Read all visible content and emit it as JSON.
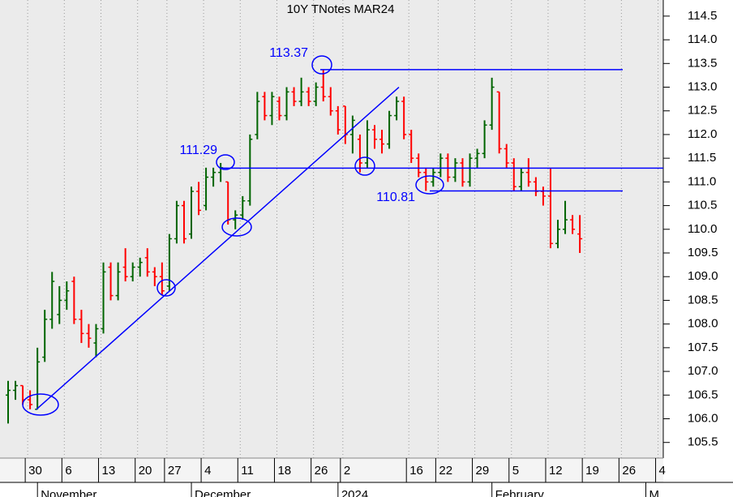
{
  "chart_data": {
    "type": "ohlc",
    "title": "10Y TNotes MAR24",
    "categories": [
      null,
      null,
      null,
      "30",
      null,
      null,
      null,
      null,
      "6",
      null,
      null,
      null,
      null,
      "13",
      null,
      null,
      null,
      null,
      "20",
      null,
      null,
      null,
      "27",
      null,
      null,
      null,
      null,
      "4",
      null,
      null,
      null,
      null,
      "11",
      null,
      null,
      null,
      null,
      "18",
      null,
      null,
      null,
      null,
      "26",
      null,
      null,
      null,
      "2",
      null,
      null,
      null,
      null,
      null,
      null,
      null,
      null,
      "16",
      null,
      null,
      null,
      "22",
      null,
      null,
      null,
      null,
      "29",
      null,
      null,
      null,
      null,
      "5",
      null,
      null,
      null,
      null,
      "12",
      null,
      null,
      null,
      null,
      "19",
      null,
      null,
      null,
      null,
      "26",
      null,
      null,
      null,
      null,
      "4"
    ],
    "months": [
      null,
      null,
      null,
      null,
      null,
      "November",
      null,
      null,
      null,
      null,
      null,
      null,
      null,
      null,
      null,
      null,
      null,
      null,
      null,
      null,
      null,
      null,
      null,
      null,
      null,
      null,
      "December",
      null,
      null,
      null,
      null,
      null,
      null,
      null,
      null,
      null,
      null,
      null,
      null,
      null,
      null,
      null,
      null,
      null,
      null,
      null,
      "2024",
      null,
      null,
      null,
      null,
      null,
      null,
      null,
      null,
      null,
      null,
      null,
      null,
      null,
      null,
      null,
      null,
      null,
      null,
      null,
      null,
      "February",
      null,
      null,
      null,
      null,
      null,
      null,
      null,
      null,
      null,
      null,
      null,
      null,
      null,
      null,
      null,
      null,
      null,
      null,
      null,
      null,
      "M",
      null
    ],
    "open": [
      106.5,
      106.6,
      106.7,
      106.4,
      106.2,
      107.3,
      108.1,
      108.2,
      108.5,
      108.9,
      108.1,
      107.8,
      107.6,
      107.9,
      109.2,
      108.6,
      109.2,
      109.0,
      109.2,
      109.4,
      109.1,
      109.0,
      108.8,
      109.8,
      110.5,
      109.9,
      110.8,
      110.5,
      111.1,
      111.2,
      111.0,
      110.2,
      110.3,
      110.6,
      112.0,
      112.8,
      112.4,
      112.7,
      112.4,
      112.9,
      112.7,
      112.9,
      112.7,
      113.0,
      112.8,
      112.5,
      112.6,
      112.0,
      111.9,
      111.4,
      112.1,
      111.9,
      111.8,
      112.4,
      112.7,
      112.0,
      111.5,
      111.2,
      111.0,
      111.2,
      111.5,
      111.1,
      111.4,
      111.0,
      111.5,
      111.6,
      112.2,
      112.9,
      111.7,
      111.4,
      110.9,
      111.2,
      111.0,
      110.8,
      110.7,
      109.7,
      110.0,
      110.2,
      109.9,
      null,
      null,
      null,
      null,
      null,
      null,
      null,
      null,
      null,
      null,
      null
    ],
    "high": [
      106.8,
      106.8,
      106.7,
      106.6,
      107.5,
      108.3,
      109.1,
      108.8,
      108.9,
      109.0,
      108.3,
      108.0,
      108.0,
      109.3,
      109.3,
      109.3,
      109.6,
      109.3,
      109.4,
      109.6,
      109.2,
      109.3,
      109.9,
      110.6,
      110.6,
      110.9,
      111.0,
      111.3,
      111.3,
      111.4,
      111.0,
      110.4,
      110.7,
      112.0,
      112.9,
      112.9,
      112.9,
      112.8,
      113.0,
      113.0,
      113.2,
      113.0,
      113.1,
      113.37,
      113.0,
      112.6,
      112.6,
      112.4,
      112.0,
      112.3,
      112.2,
      112.1,
      112.5,
      112.8,
      112.8,
      112.1,
      111.6,
      111.3,
      111.3,
      111.6,
      111.6,
      111.5,
      111.5,
      111.6,
      111.7,
      112.3,
      113.2,
      112.9,
      111.8,
      111.5,
      111.3,
      111.5,
      111.1,
      110.9,
      111.3,
      110.2,
      110.6,
      110.3,
      110.3,
      null,
      null,
      null,
      null,
      null,
      null,
      null,
      null,
      null,
      null,
      null
    ],
    "low": [
      105.9,
      106.4,
      106.3,
      106.2,
      106.2,
      107.2,
      107.9,
      108.0,
      108.3,
      108.0,
      107.6,
      107.5,
      107.3,
      107.8,
      108.5,
      108.5,
      108.9,
      108.9,
      109.0,
      109.0,
      108.8,
      108.6,
      108.7,
      109.7,
      109.7,
      109.8,
      110.3,
      110.4,
      110.9,
      111.0,
      110.1,
      110.0,
      110.2,
      110.5,
      111.9,
      112.3,
      112.2,
      112.3,
      112.3,
      112.6,
      112.6,
      112.6,
      112.6,
      112.7,
      112.4,
      112.0,
      111.8,
      111.6,
      111.2,
      111.3,
      111.7,
      111.6,
      111.7,
      112.3,
      111.9,
      111.4,
      111.1,
      110.81,
      110.9,
      111.1,
      111.0,
      111.0,
      110.9,
      110.9,
      111.3,
      111.5,
      112.1,
      111.6,
      111.3,
      110.8,
      110.8,
      110.9,
      110.7,
      110.5,
      109.6,
      109.6,
      109.9,
      109.9,
      109.5,
      null,
      null,
      null,
      null,
      null,
      null,
      null,
      null,
      null,
      null,
      null
    ],
    "close": [
      106.6,
      106.7,
      106.4,
      106.3,
      107.2,
      108.1,
      108.9,
      108.5,
      108.7,
      108.1,
      107.8,
      107.7,
      107.9,
      109.1,
      108.6,
      109.1,
      109.0,
      109.2,
      109.3,
      109.1,
      109.0,
      108.7,
      109.8,
      110.5,
      109.8,
      110.8,
      110.4,
      111.1,
      111.2,
      111.3,
      110.2,
      110.3,
      110.6,
      111.9,
      112.7,
      112.4,
      112.8,
      112.4,
      112.9,
      112.7,
      112.9,
      112.7,
      113.0,
      112.8,
      112.5,
      112.1,
      112.0,
      112.3,
      111.4,
      112.1,
      111.9,
      111.8,
      112.4,
      112.7,
      112.0,
      111.5,
      111.2,
      111.0,
      111.2,
      111.5,
      111.1,
      111.4,
      111.0,
      111.5,
      111.6,
      112.2,
      113.0,
      111.7,
      111.4,
      110.9,
      111.2,
      111.0,
      110.8,
      110.7,
      109.7,
      110.0,
      110.2,
      110.0,
      109.8,
      null,
      null,
      null,
      null,
      null,
      null,
      null,
      null,
      null,
      null,
      null
    ],
    "up_color": "#006400",
    "down_color": "#ff0000",
    "levels": [
      113.37,
      111.29,
      110.81
    ],
    "trendline": [
      106.2,
      113.0
    ],
    "annotation_color": "#0000ff",
    "ylim": [
      105.17,
      114.84
    ],
    "yticks": [
      {
        "value": 105.5,
        "label": "105.5"
      },
      {
        "value": 106,
        "label": "106.0"
      },
      106.5,
      {
        "value": 107,
        "label": "107.0"
      },
      107.5,
      {
        "value": 108,
        "label": "108.0"
      },
      108.5,
      {
        "value": 109,
        "label": "109.0"
      },
      109.5,
      {
        "value": 110,
        "label": "110.0"
      },
      110.5,
      {
        "value": 111,
        "label": "111.0"
      },
      111.5,
      {
        "value": 112,
        "label": "112.0"
      },
      112.5,
      {
        "value": 113,
        "label": "113.0"
      },
      113.5,
      {
        "value": 114,
        "label": "114.0"
      },
      114.5
    ],
    "grid": "x"
  }
}
